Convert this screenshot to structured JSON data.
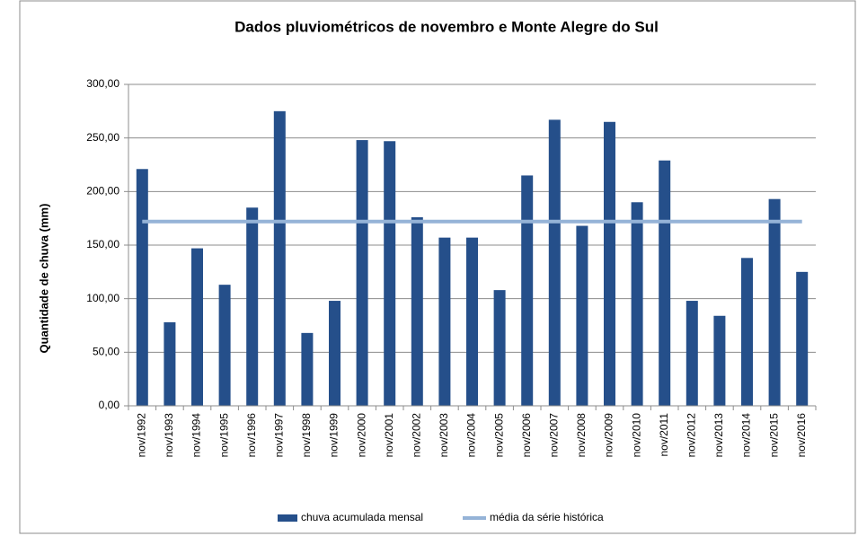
{
  "chart_data": {
    "type": "bar",
    "title": "Dados pluviométricos de novembro e Monte Alegre do Sul",
    "y_label": "Quantidade de chuva (mm)",
    "categories": [
      "nov/1992",
      "nov/1993",
      "nov/1994",
      "nov/1995",
      "nov/1996",
      "nov/1997",
      "nov/1998",
      "nov/1999",
      "nov/2000",
      "nov/2001",
      "nov/2002",
      "nov/2003",
      "nov/2004",
      "nov/2005",
      "nov/2006",
      "nov/2007",
      "nov/2008",
      "nov/2009",
      "nov/2010",
      "nov/2011",
      "nov/2012",
      "nov/2013",
      "nov/2014",
      "nov/2015",
      "nov/2016"
    ],
    "series": [
      {
        "name": "chuva acumulada mensal",
        "type": "bar",
        "color": "#254f8a",
        "values": [
          221,
          78,
          147,
          113,
          185,
          275,
          68,
          98,
          248,
          247,
          176,
          157,
          157,
          108,
          215,
          267,
          168,
          265,
          190,
          229,
          98,
          84,
          138,
          193,
          125
        ]
      },
      {
        "name": "média da série histórica",
        "type": "line",
        "color": "#95b3d7",
        "values": [
          172,
          172,
          172,
          172,
          172,
          172,
          172,
          172,
          172,
          172,
          172,
          172,
          172,
          172,
          172,
          172,
          172,
          172,
          172,
          172,
          172,
          172,
          172,
          172,
          172
        ]
      }
    ],
    "ylim": [
      0,
      300
    ],
    "yticks": [
      {
        "value": 0,
        "label": "0,00"
      },
      {
        "value": 50,
        "label": "50,00"
      },
      {
        "value": 100,
        "label": "100,00"
      },
      {
        "value": 150,
        "label": "150,00"
      },
      {
        "value": 200,
        "label": "200,00"
      },
      {
        "value": 250,
        "label": "250,00"
      },
      {
        "value": 300,
        "label": "300,00"
      }
    ],
    "grid": true,
    "legend": "bottom"
  }
}
